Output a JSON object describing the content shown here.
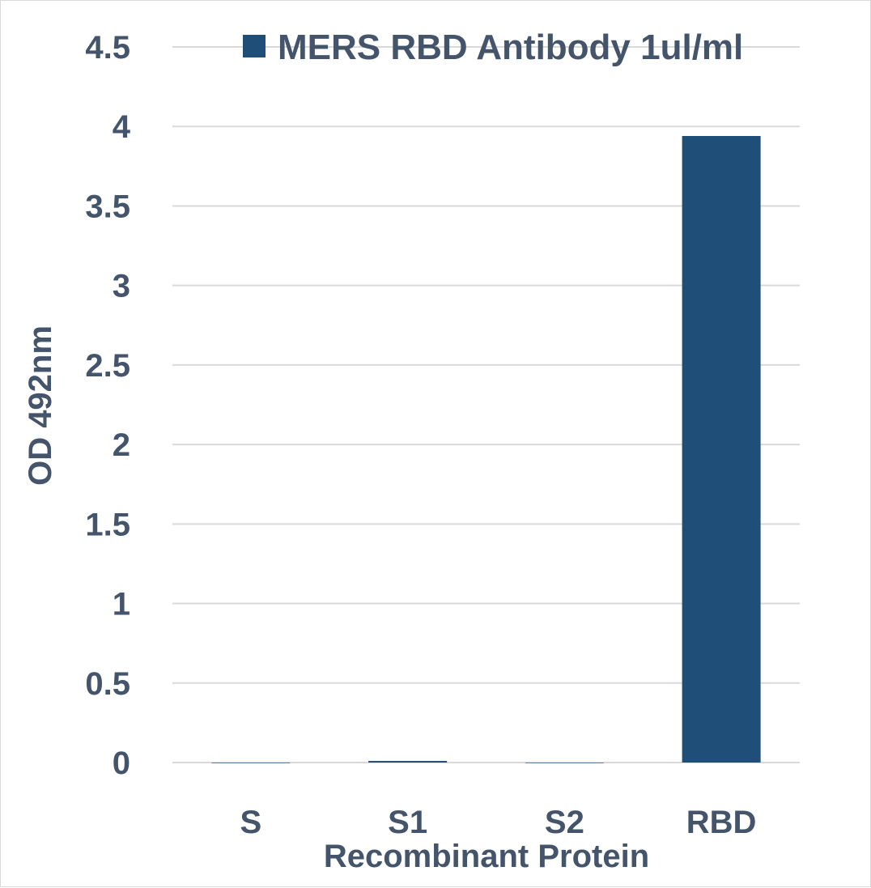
{
  "chart_data": {
    "type": "bar",
    "categories": [
      "S",
      "S1",
      "S2",
      "RBD"
    ],
    "series": [
      {
        "name": "MERS RBD Antibody 1ul/ml",
        "values": [
          0.0,
          0.01,
          0.0,
          3.94
        ],
        "color": "#1f4e79"
      }
    ],
    "xlabel": "Recombinant Protein",
    "ylabel": "OD 492nm",
    "ylim": [
      0,
      4.5
    ],
    "yticks": [
      "0",
      "0.5",
      "1",
      "1.5",
      "2",
      "2.5",
      "3",
      "3.5",
      "4",
      "4.5"
    ],
    "grid": true,
    "legend_position": "top-right"
  }
}
